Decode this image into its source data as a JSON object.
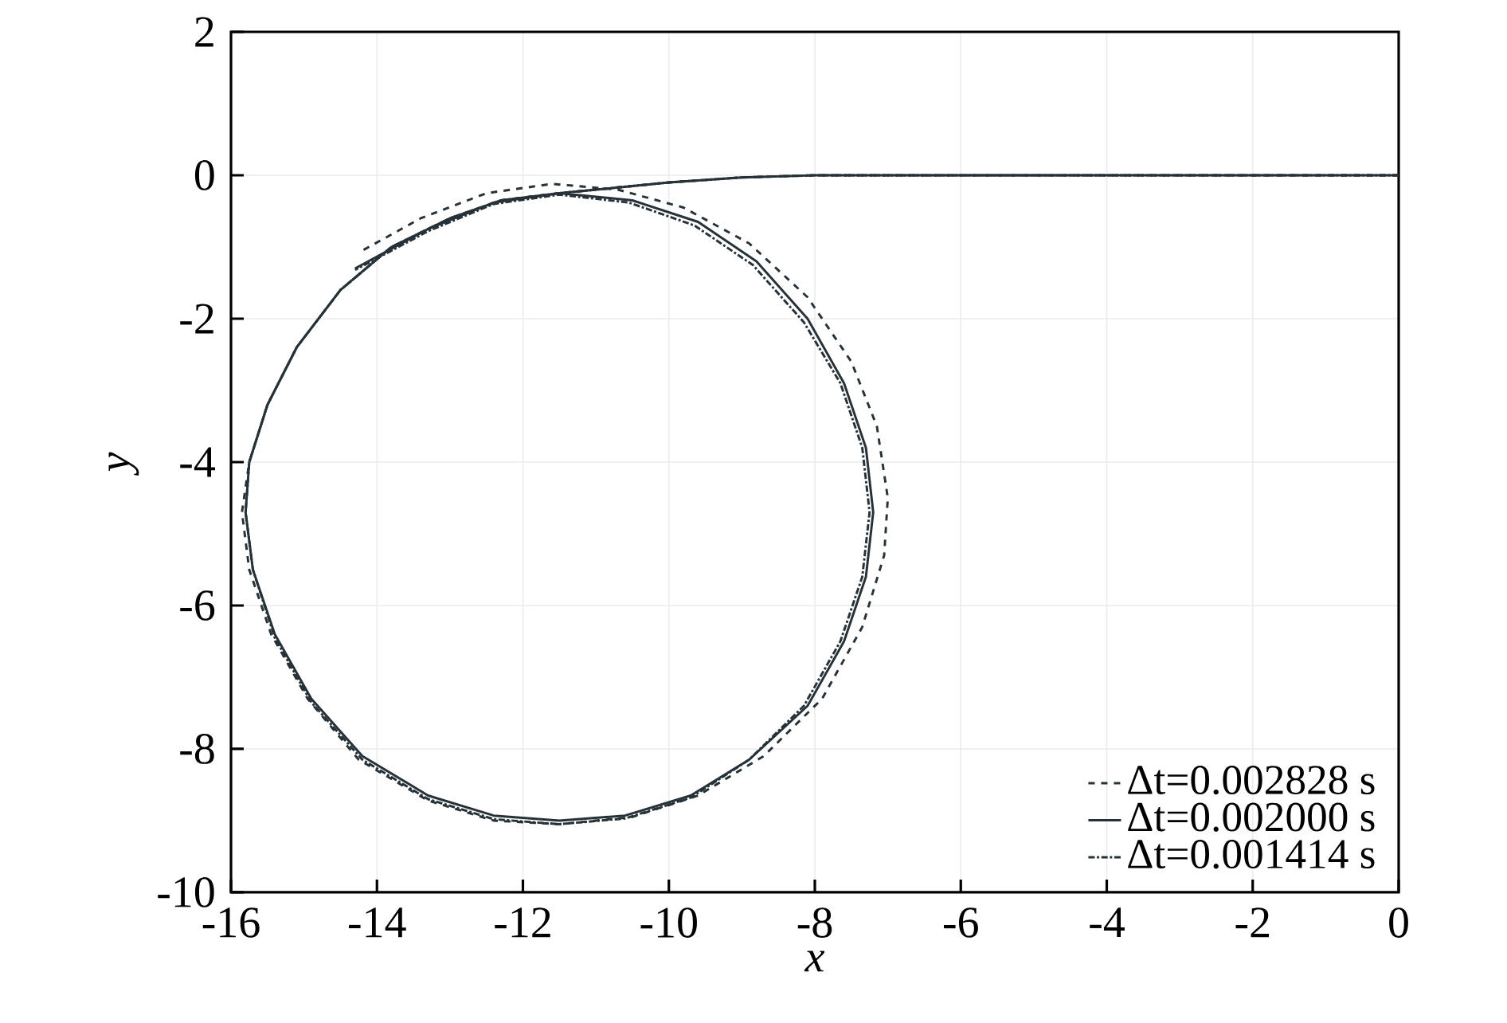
{
  "chart_data": {
    "type": "line",
    "xlabel": "x",
    "ylabel": "y",
    "xlim": [
      -16,
      0
    ],
    "xticks": [
      -16,
      -14,
      -12,
      -10,
      -8,
      -6,
      -4,
      -2,
      0
    ],
    "ylim": [
      -10,
      2
    ],
    "yticks": [
      -10,
      -8,
      -6,
      -4,
      -2,
      0,
      2
    ],
    "grid": true,
    "legend": "bottom right",
    "series": [
      {
        "name": "Δt=0.002828 s",
        "color": "#263238",
        "line_style": "dashed",
        "x": [
          0,
          -4,
          -8,
          -9,
          -10,
          -10.8,
          -11.5,
          -12.3,
          -13,
          -13.8,
          -14.5,
          -15.1,
          -15.5,
          -15.75,
          -15.85,
          -15.75,
          -15.45,
          -14.95,
          -14.25,
          -13.3,
          -12.4,
          -11.5,
          -10.5,
          -9.6,
          -8.7,
          -7.9,
          -7.35,
          -7.05,
          -7.0,
          -7.15,
          -7.5,
          -8.1,
          -8.9,
          -9.8,
          -10.7,
          -11.6,
          -12.5,
          -13.4,
          -14.2
        ],
        "values": [
          0,
          0,
          0,
          -0.03,
          -0.1,
          -0.18,
          -0.25,
          -0.35,
          -0.6,
          -1.0,
          -1.6,
          -2.4,
          -3.2,
          -4.0,
          -4.7,
          -5.5,
          -6.4,
          -7.3,
          -8.15,
          -8.72,
          -9.0,
          -9.05,
          -8.95,
          -8.65,
          -8.1,
          -7.3,
          -6.3,
          -5.3,
          -4.5,
          -3.5,
          -2.6,
          -1.7,
          -0.95,
          -0.45,
          -0.2,
          -0.12,
          -0.25,
          -0.6,
          -1.05
        ]
      },
      {
        "name": "Δt=0.002000 s",
        "color": "#263238",
        "line_style": "solid",
        "x": [
          0,
          -4,
          -8,
          -9,
          -10,
          -10.8,
          -11.5,
          -12.3,
          -13,
          -13.8,
          -14.5,
          -15.1,
          -15.5,
          -15.75,
          -15.8,
          -15.7,
          -15.4,
          -14.9,
          -14.2,
          -13.3,
          -12.4,
          -11.5,
          -10.6,
          -9.7,
          -8.9,
          -8.1,
          -7.6,
          -7.3,
          -7.2,
          -7.3,
          -7.6,
          -8.1,
          -8.8,
          -9.6,
          -10.5,
          -11.5,
          -12.4,
          -13.3,
          -14.3
        ],
        "values": [
          0,
          0,
          0,
          -0.03,
          -0.1,
          -0.18,
          -0.25,
          -0.35,
          -0.6,
          -1.0,
          -1.6,
          -2.4,
          -3.2,
          -4.0,
          -4.7,
          -5.5,
          -6.4,
          -7.3,
          -8.1,
          -8.65,
          -8.93,
          -9.0,
          -8.93,
          -8.65,
          -8.15,
          -7.4,
          -6.5,
          -5.6,
          -4.7,
          -3.8,
          -2.9,
          -2.0,
          -1.2,
          -0.65,
          -0.35,
          -0.25,
          -0.38,
          -0.75,
          -1.3
        ]
      },
      {
        "name": "Δt=0.001414 s",
        "color": "#263238",
        "line_style": "dotted",
        "x": [
          0,
          -4,
          -8,
          -9,
          -10,
          -10.8,
          -11.5,
          -12.3,
          -13,
          -13.8,
          -14.5,
          -15.1,
          -15.5,
          -15.75,
          -15.8,
          -15.7,
          -15.4,
          -14.9,
          -14.2,
          -13.3,
          -12.4,
          -11.5,
          -10.6,
          -9.7,
          -8.9,
          -8.15,
          -7.65,
          -7.35,
          -7.25,
          -7.35,
          -7.65,
          -8.15,
          -8.85,
          -9.65,
          -10.55,
          -11.5,
          -12.4,
          -13.3,
          -14.3
        ],
        "values": [
          0,
          0,
          0,
          -0.03,
          -0.1,
          -0.18,
          -0.25,
          -0.35,
          -0.6,
          -1.0,
          -1.6,
          -2.4,
          -3.2,
          -4.0,
          -4.7,
          -5.5,
          -6.45,
          -7.35,
          -8.15,
          -8.7,
          -8.98,
          -9.05,
          -8.97,
          -8.68,
          -8.15,
          -7.4,
          -6.5,
          -5.6,
          -4.7,
          -3.8,
          -2.9,
          -2.05,
          -1.25,
          -0.7,
          -0.38,
          -0.27,
          -0.4,
          -0.78,
          -1.32
        ]
      }
    ]
  }
}
